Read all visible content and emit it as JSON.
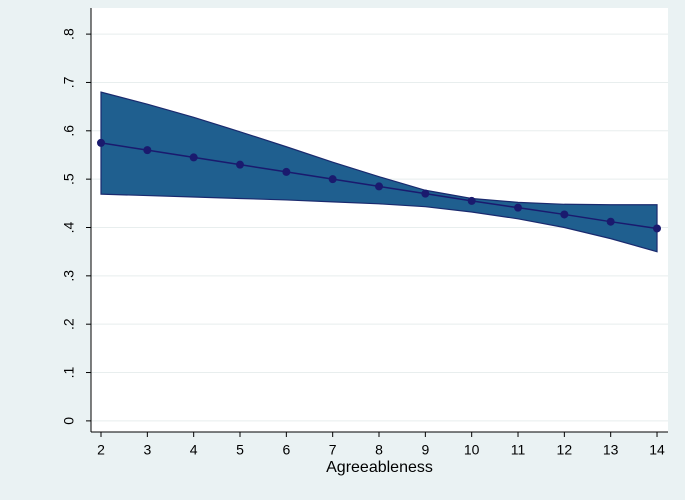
{
  "chart_data": {
    "type": "line",
    "xlabel": "Agreeableness",
    "x": [
      2,
      3,
      4,
      5,
      6,
      7,
      8,
      9,
      10,
      11,
      12,
      13,
      14
    ],
    "series": [
      {
        "color": "#1a1a6e",
        "values": [
          0.575,
          0.56,
          0.545,
          0.53,
          0.515,
          0.5,
          0.485,
          0.47,
          0.455,
          0.441,
          0.427,
          0.412,
          0.398
        ]
      }
    ],
    "band": {
      "color": "#1f5f8f",
      "upper": [
        0.68,
        0.655,
        0.628,
        0.598,
        0.567,
        0.535,
        0.505,
        0.477,
        0.46,
        0.452,
        0.448,
        0.447,
        0.447
      ],
      "lower": [
        0.469,
        0.466,
        0.463,
        0.46,
        0.457,
        0.453,
        0.449,
        0.443,
        0.432,
        0.418,
        0.4,
        0.377,
        0.35
      ]
    },
    "xlim": [
      1.784,
      14.237
    ],
    "xticks": [
      2,
      3,
      4,
      5,
      6,
      7,
      8,
      9,
      10,
      11,
      12,
      13,
      14
    ],
    "ylim": [
      -0.023,
      0.854
    ],
    "yticks": [
      0,
      {
        "value": 0.1,
        "label": ".1"
      },
      {
        "value": 0.2,
        "label": ".2"
      },
      {
        "value": 0.3,
        "label": ".3"
      },
      {
        "value": 0.4,
        "label": ".4"
      },
      {
        "value": 0.5,
        "label": ".5"
      },
      {
        "value": 0.6,
        "label": ".6"
      },
      {
        "value": 0.7,
        "label": ".7"
      },
      {
        "value": 0.8,
        "label": ".8"
      }
    ],
    "grid": true
  }
}
